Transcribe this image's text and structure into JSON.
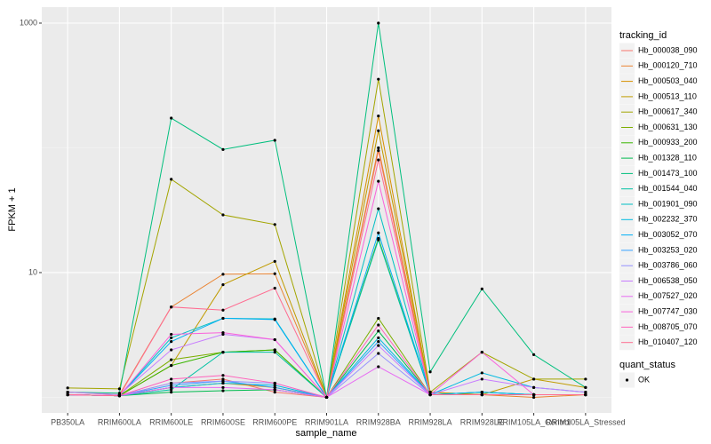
{
  "chart_data": {
    "type": "line",
    "x_label": "sample_name",
    "y_label": "FPKM + 1",
    "categories": [
      "PB350LA",
      "RRIM600LA",
      "RRIM600LE",
      "RRIM600SE",
      "RRIM600PE",
      "RRIM901LA",
      "RRIM928BA",
      "RRIM928LA",
      "RRIM928LE",
      "RRIM105LA_Control",
      "RRIM105LA_Stressed"
    ],
    "log_scale": true,
    "ylim": [
      0.75,
      1343
    ],
    "yticks": [
      10,
      1000
    ],
    "grid": true,
    "legend_title": "tracking_id",
    "legend_position": "right",
    "point_legend_title": "quant_status",
    "point_legend_labels": [
      "OK"
    ],
    "point_color": "#000000",
    "series": [
      {
        "name": "Hb_000038_090",
        "color": "#F8766D",
        "values": [
          1.05,
          1.03,
          1.3,
          1.4,
          1.1,
          1,
          95,
          1.05,
          1.05,
          1.05,
          1.05
        ]
      },
      {
        "name": "Hb_000120_710",
        "color": "#EA8331",
        "values": [
          1.1,
          1.05,
          5.3,
          9.7,
          9.8,
          1,
          100,
          1.1,
          1.05,
          1.0,
          1.05
        ]
      },
      {
        "name": "Hb_000503_040",
        "color": "#D89000",
        "values": [
          1.05,
          1.03,
          1.2,
          1.3,
          1.2,
          1,
          180,
          1.05,
          1.05,
          1.05,
          1.05
        ]
      },
      {
        "name": "Hb_000513_110",
        "color": "#C09B00",
        "values": [
          1.05,
          1.03,
          1.8,
          8.0,
          12.3,
          1,
          137,
          1.1,
          1.05,
          1.4,
          1.2
        ]
      },
      {
        "name": "Hb_000617_340",
        "color": "#A3A500",
        "values": [
          1.19,
          1.17,
          56,
          29,
          24.3,
          1,
          355,
          1.1,
          2.3,
          1.4,
          1.4
        ]
      },
      {
        "name": "Hb_000631_130",
        "color": "#7CAE00",
        "values": [
          1.05,
          1.03,
          2.0,
          2.3,
          2.4,
          1,
          4.3,
          1.05,
          1.05,
          1.05,
          1.05
        ]
      },
      {
        "name": "Hb_000933_200",
        "color": "#39B600",
        "values": [
          1.05,
          1.03,
          1.8,
          2.3,
          2.4,
          1,
          18.8,
          1.05,
          1.1,
          1.05,
          1.05
        ]
      },
      {
        "name": "Hb_001328_110",
        "color": "#00BB4E",
        "values": [
          1.05,
          1.03,
          1.1,
          1.13,
          1.15,
          1,
          3.4,
          1.05,
          1.05,
          1.05,
          1.05
        ]
      },
      {
        "name": "Hb_001473_100",
        "color": "#00BF7D",
        "values": [
          1.1,
          1.08,
          173,
          97,
          115,
          1,
          1000,
          1.6,
          7.4,
          2.2,
          1.2
        ]
      },
      {
        "name": "Hb_001544_040",
        "color": "#00C1A3",
        "values": [
          1.05,
          1.03,
          1.15,
          2.3,
          2.3,
          1,
          18.3,
          1.05,
          1.05,
          1.05,
          1.05
        ]
      },
      {
        "name": "Hb_001901_090",
        "color": "#00BFC4",
        "values": [
          1.05,
          1.03,
          3.0,
          4.3,
          4.25,
          1,
          32.5,
          1.05,
          1.1,
          1.05,
          1.05
        ]
      },
      {
        "name": "Hb_002232_370",
        "color": "#00BAE0",
        "values": [
          1.05,
          1.03,
          1.2,
          1.3,
          1.25,
          1,
          3.0,
          1.05,
          1.57,
          1.2,
          1.1
        ]
      },
      {
        "name": "Hb_003052_070",
        "color": "#00B0F6",
        "values": [
          1.05,
          1.03,
          2.8,
          4.3,
          4.2,
          1,
          20.8,
          1.05,
          1.1,
          1.05,
          1.05
        ]
      },
      {
        "name": "Hb_003253_020",
        "color": "#35A2FF",
        "values": [
          1.05,
          1.03,
          1.25,
          1.35,
          1.2,
          1,
          2.8,
          1.05,
          1.05,
          1.05,
          1.05
        ]
      },
      {
        "name": "Hb_003786_060",
        "color": "#9590FF",
        "values": [
          1.05,
          1.03,
          1.3,
          1.35,
          1.3,
          1,
          2.25,
          1.05,
          1.05,
          1.05,
          1.05
        ]
      },
      {
        "name": "Hb_006538_050",
        "color": "#C77CFF",
        "values": [
          1.1,
          1.05,
          2.4,
          3.2,
          2.9,
          1,
          2.6,
          1.05,
          1.4,
          1.2,
          1.1
        ]
      },
      {
        "name": "Hb_007527_020",
        "color": "#E76BF3",
        "values": [
          1.05,
          1.03,
          1.2,
          1.2,
          1.15,
          1,
          1.76,
          1.05,
          1.05,
          1.05,
          1.05
        ]
      },
      {
        "name": "Hb_007747_030",
        "color": "#FA62DB",
        "values": [
          1.05,
          1.03,
          3.2,
          3.3,
          2.9,
          1,
          54,
          1.05,
          2.3,
          1.05,
          1.05
        ]
      },
      {
        "name": "Hb_008705_070",
        "color": "#FF62BC",
        "values": [
          1.05,
          1.03,
          1.4,
          1.5,
          1.3,
          1,
          3.8,
          1.05,
          1.05,
          1.05,
          1.05
        ]
      },
      {
        "name": "Hb_010407_120",
        "color": "#FF6C91",
        "values": [
          1.05,
          1.03,
          5.3,
          5.0,
          7.5,
          1,
          80,
          1.05,
          1.05,
          1.05,
          1.05
        ]
      }
    ]
  }
}
